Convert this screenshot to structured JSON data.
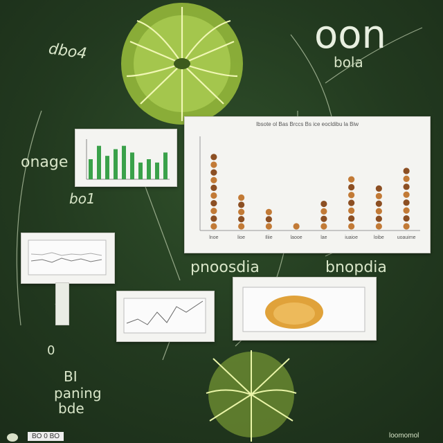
{
  "texts": {
    "title": "oon",
    "subtitle": "bola",
    "top_left_scribble": "dbo4",
    "left_label": "onage",
    "left_mid_label": "bo1",
    "prose_label_left": "pnoosdia",
    "prose_label_right": "bnopdia",
    "bottom_left_1": "BI",
    "bottom_left_2": "paning",
    "bottom_left_3": "bde",
    "bottom_left_num": "0",
    "main_chart_title": "Ibsote ol Bas Brccs Bs ice eocldibu la Biw",
    "footer_left": "BO 0 BO",
    "footer_right": "loomomol"
  },
  "colors": {
    "background": "#22391f",
    "leaf_primary": "#c7e46a",
    "leaf_secondary": "#8fb43b",
    "bar_green": "#3aa14a",
    "bar_brown": "#8c4f23",
    "bar_orange": "#c27a36",
    "blob": "#e0a23a"
  },
  "chart_data": [
    {
      "type": "bar",
      "values": [
        6,
        10,
        7,
        9,
        10,
        8,
        5,
        6,
        5,
        8
      ],
      "ylim": [
        0,
        12
      ]
    },
    {
      "type": "bar",
      "categories": [
        "lnoe",
        "lioe",
        "Iliie",
        "laooe",
        "lae",
        "iuaioe",
        "loibe",
        "uoauime"
      ],
      "values": [
        9,
        4.2,
        2.5,
        0.7,
        3.5,
        6.4,
        5.3,
        7.4
      ],
      "title": "Ibsote ol Bas Brccs Bs ice eocldibu la Biw",
      "ylim": [
        0,
        11
      ]
    }
  ],
  "icons": {
    "top_leaf": "leaf-network-icon",
    "bottom_leaf": "leaf-network-icon",
    "blob": "fungus-blob-icon"
  }
}
